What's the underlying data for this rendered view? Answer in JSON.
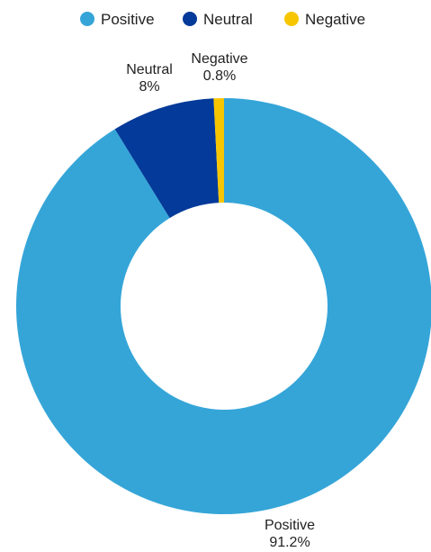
{
  "chart_data": {
    "type": "pie",
    "donut": true,
    "legend_position": "top",
    "slices": [
      {
        "label": "Positive",
        "value": 91.2,
        "display_value": "91.2%",
        "color": "#35A5D8"
      },
      {
        "label": "Neutral",
        "value": 8,
        "display_value": "8%",
        "color": "#043A99"
      },
      {
        "label": "Negative",
        "value": 0.8,
        "display_value": "0.8%",
        "color": "#F7C600"
      }
    ]
  }
}
